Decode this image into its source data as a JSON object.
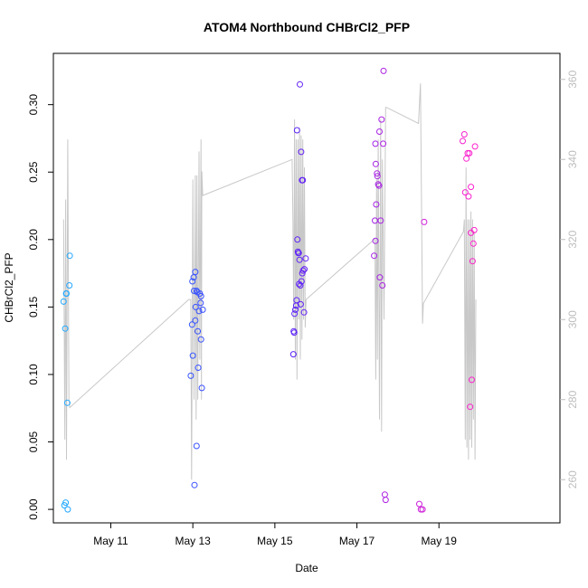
{
  "chart_data": {
    "type": "scatter",
    "title": "ATOM4 Northbound CHBrCl2_PFP",
    "xlabel": "Date",
    "ylabel": "CHBrCl2_PFP",
    "x_unit": "days since May 1 (x = 10 is May 11)",
    "xlim": [
      8.6,
      20.95
    ],
    "ylim": [
      -0.01,
      0.338
    ],
    "x_ticks": [
      {
        "x": 10,
        "label": "May 11"
      },
      {
        "x": 12,
        "label": "May 13"
      },
      {
        "x": 14,
        "label": "May 15"
      },
      {
        "x": 16,
        "label": "May 17"
      },
      {
        "x": 18,
        "label": "May 19"
      }
    ],
    "y_ticks": [
      0.0,
      0.05,
      0.1,
      0.15,
      0.2,
      0.25,
      0.3
    ],
    "y_tick_labels": [
      "0.00",
      "0.05",
      "0.10",
      "0.15",
      "0.20",
      "0.25",
      "0.30"
    ],
    "y2lim": [
      249.2,
      366.5
    ],
    "y2_ticks": [
      260,
      280,
      300,
      320,
      340,
      360
    ],
    "y2_tick_labels": [
      "260",
      "280",
      "300",
      "320",
      "340",
      "360"
    ],
    "grid": false,
    "colors": {
      "line": "#c8c8c8",
      "right_axis": "#bdbdbd",
      "points_start": "#22aaff",
      "points_mid": "#4422ff",
      "points_end": "#ff22cc"
    },
    "points": [
      [
        8.85,
        0.154
      ],
      [
        8.89,
        0.134
      ],
      [
        8.91,
        0.16
      ],
      [
        8.94,
        0.079
      ],
      [
        8.87,
        0.003
      ],
      [
        8.9,
        0.005
      ],
      [
        8.95,
        0.0
      ],
      [
        9.0,
        0.188
      ],
      [
        8.99,
        0.166
      ],
      [
        8.92,
        0.16
      ],
      [
        11.95,
        0.099
      ],
      [
        11.98,
        0.137
      ],
      [
        12.0,
        0.114
      ],
      [
        12.03,
        0.162
      ],
      [
        11.99,
        0.169
      ],
      [
        12.02,
        0.172
      ],
      [
        12.06,
        0.176
      ],
      [
        12.07,
        0.15
      ],
      [
        12.09,
        0.162
      ],
      [
        12.12,
        0.132
      ],
      [
        12.13,
        0.105
      ],
      [
        12.15,
        0.147
      ],
      [
        12.17,
        0.16
      ],
      [
        12.19,
        0.153
      ],
      [
        12.2,
        0.158
      ],
      [
        12.2,
        0.126
      ],
      [
        12.22,
        0.09
      ],
      [
        12.24,
        0.148
      ],
      [
        12.09,
        0.047
      ],
      [
        12.04,
        0.018
      ],
      [
        12.06,
        0.14
      ],
      [
        12.11,
        0.161
      ],
      [
        14.45,
        0.115
      ],
      [
        14.47,
        0.131
      ],
      [
        14.48,
        0.145
      ],
      [
        14.5,
        0.148
      ],
      [
        14.52,
        0.151
      ],
      [
        14.53,
        0.155
      ],
      [
        14.55,
        0.2
      ],
      [
        14.57,
        0.19
      ],
      [
        14.54,
        0.281
      ],
      [
        14.56,
        0.191
      ],
      [
        14.59,
        0.167
      ],
      [
        14.6,
        0.185
      ],
      [
        14.62,
        0.166
      ],
      [
        14.63,
        0.152
      ],
      [
        14.65,
        0.169
      ],
      [
        14.67,
        0.175
      ],
      [
        14.69,
        0.177
      ],
      [
        14.71,
        0.146
      ],
      [
        14.72,
        0.178
      ],
      [
        14.75,
        0.186
      ],
      [
        14.61,
        0.315
      ],
      [
        14.66,
        0.244
      ],
      [
        14.64,
        0.265
      ],
      [
        14.68,
        0.244
      ],
      [
        14.46,
        0.132
      ],
      [
        14.58,
        0.19
      ],
      [
        16.42,
        0.188
      ],
      [
        16.44,
        0.214
      ],
      [
        16.45,
        0.199
      ],
      [
        16.47,
        0.226
      ],
      [
        16.49,
        0.249
      ],
      [
        16.5,
        0.247
      ],
      [
        16.52,
        0.241
      ],
      [
        16.54,
        0.24
      ],
      [
        16.56,
        0.172
      ],
      [
        16.58,
        0.214
      ],
      [
        16.62,
        0.166
      ],
      [
        16.64,
        0.271
      ],
      [
        16.46,
        0.256
      ],
      [
        16.55,
        0.28
      ],
      [
        16.6,
        0.289
      ],
      [
        16.45,
        0.271
      ],
      [
        16.65,
        0.325
      ],
      [
        16.68,
        0.011
      ],
      [
        16.7,
        0.007
      ],
      [
        17.52,
        0.004
      ],
      [
        17.56,
        0.0
      ],
      [
        17.6,
        0.0
      ],
      [
        17.64,
        0.213
      ],
      [
        18.58,
        0.273
      ],
      [
        18.62,
        0.278
      ],
      [
        18.64,
        0.235
      ],
      [
        18.67,
        0.26
      ],
      [
        18.7,
        0.264
      ],
      [
        18.72,
        0.232
      ],
      [
        18.74,
        0.264
      ],
      [
        18.76,
        0.076
      ],
      [
        18.78,
        0.205
      ],
      [
        18.8,
        0.096
      ],
      [
        18.82,
        0.184
      ],
      [
        18.84,
        0.197
      ],
      [
        18.86,
        0.207
      ],
      [
        18.78,
        0.239
      ],
      [
        18.88,
        0.269
      ]
    ],
    "line_series": [
      [
        8.85,
        325
      ],
      [
        8.88,
        270
      ],
      [
        8.9,
        330
      ],
      [
        8.92,
        265
      ],
      [
        8.95,
        345
      ],
      [
        8.98,
        280
      ],
      [
        9.0,
        278
      ],
      [
        11.9,
        305
      ],
      [
        11.95,
        305
      ],
      [
        11.97,
        260
      ],
      [
        12.0,
        335
      ],
      [
        12.03,
        280
      ],
      [
        12.06,
        336
      ],
      [
        12.08,
        275
      ],
      [
        12.1,
        336
      ],
      [
        12.12,
        280
      ],
      [
        12.15,
        342
      ],
      [
        12.17,
        290
      ],
      [
        12.2,
        345
      ],
      [
        12.21,
        280
      ],
      [
        12.22,
        337
      ],
      [
        12.24,
        331
      ],
      [
        14.42,
        340
      ],
      [
        14.44,
        325
      ],
      [
        14.46,
        300
      ],
      [
        14.48,
        350
      ],
      [
        14.5,
        290
      ],
      [
        14.52,
        345
      ],
      [
        14.54,
        285
      ],
      [
        14.56,
        345
      ],
      [
        14.58,
        300
      ],
      [
        14.6,
        348
      ],
      [
        14.62,
        290
      ],
      [
        14.64,
        346
      ],
      [
        14.66,
        295
      ],
      [
        14.68,
        345
      ],
      [
        14.7,
        300
      ],
      [
        14.72,
        338
      ],
      [
        14.74,
        298
      ],
      [
        14.76,
        305
      ],
      [
        16.42,
        320
      ],
      [
        16.44,
        320
      ],
      [
        16.46,
        285
      ],
      [
        16.48,
        335
      ],
      [
        16.5,
        290
      ],
      [
        16.52,
        345
      ],
      [
        16.55,
        275
      ],
      [
        16.58,
        350
      ],
      [
        16.6,
        272
      ],
      [
        16.62,
        340
      ],
      [
        16.66,
        300
      ],
      [
        16.7,
        353
      ],
      [
        16.72,
        353
      ],
      [
        17.5,
        349
      ],
      [
        17.55,
        359
      ],
      [
        17.6,
        299
      ],
      [
        17.62,
        304
      ],
      [
        18.6,
        322
      ],
      [
        18.62,
        325
      ],
      [
        18.64,
        270
      ],
      [
        18.66,
        338
      ],
      [
        18.68,
        268
      ],
      [
        18.7,
        325
      ],
      [
        18.72,
        265
      ],
      [
        18.74,
        325
      ],
      [
        18.76,
        270
      ],
      [
        18.78,
        327
      ],
      [
        18.8,
        268
      ],
      [
        18.82,
        325
      ],
      [
        18.84,
        275
      ],
      [
        18.86,
        322
      ],
      [
        18.88,
        265
      ],
      [
        18.9,
        305
      ]
    ]
  }
}
